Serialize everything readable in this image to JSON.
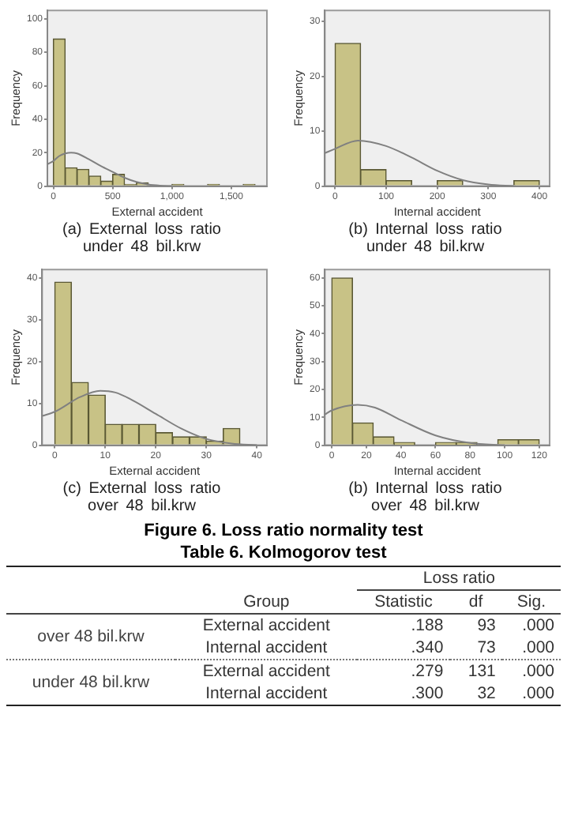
{
  "chart_data": [
    {
      "type": "histogram",
      "title": "(a) External loss ratio under 48 bil.krw",
      "xlabel": "External accident",
      "ylabel": "Frequency",
      "color": "#c8c286",
      "marker": "none",
      "bins": [
        0,
        100,
        200,
        300,
        400,
        500,
        600,
        700,
        800,
        900,
        1000,
        1100,
        1200,
        1300,
        1400,
        1500,
        1600,
        1700
      ],
      "values": [
        88,
        11,
        10,
        6,
        3,
        7,
        1,
        2,
        0,
        0,
        1,
        0,
        0,
        1,
        0,
        0,
        1
      ],
      "xlim": [
        -50,
        1800
      ],
      "xticks": [
        0,
        500,
        {
          "value": 1000,
          "label": "1,000"
        },
        {
          "value": 1500,
          "label": "1,500"
        }
      ],
      "ylim": [
        0,
        105
      ],
      "yticks": [
        0,
        20,
        40,
        60,
        80,
        100
      ],
      "series": [
        {
          "type": "line",
          "color": "#808080",
          "x": [
            -50,
            0,
            50,
            100,
            150,
            200,
            300,
            400,
            500,
            600,
            700,
            800,
            900,
            1000
          ],
          "values": [
            13,
            15,
            18,
            19.5,
            20,
            19.5,
            16,
            12,
            8.5,
            5,
            2.5,
            1,
            0.3,
            0
          ]
        }
      ]
    },
    {
      "type": "histogram",
      "title": "(b) Internal loss ratio under 48 bil.krw",
      "xlabel": "Internal accident",
      "ylabel": "Frequency",
      "color": "#c8c286",
      "marker": "none",
      "bins": [
        0,
        50,
        100,
        150,
        200,
        250,
        300,
        350,
        400
      ],
      "values": [
        26,
        3,
        1,
        0,
        1,
        0,
        0,
        1
      ],
      "xlim": [
        -20,
        420
      ],
      "xticks": [
        0,
        100,
        200,
        300,
        400
      ],
      "ylim": [
        0,
        32
      ],
      "yticks": [
        0,
        10,
        20,
        30
      ],
      "series": [
        {
          "type": "line",
          "color": "#808080",
          "x": [
            -20,
            0,
            45,
            100,
            150,
            200,
            250,
            300,
            350
          ],
          "values": [
            6,
            6.8,
            8.3,
            7.3,
            5.2,
            2.8,
            1.1,
            0.3,
            0
          ]
        }
      ]
    },
    {
      "type": "histogram",
      "title": "(c) External loss ratio over 48 bil.krw",
      "xlabel": "External accident",
      "ylabel": "Frequency",
      "color": "#c8c286",
      "marker": "none",
      "bins": [
        0,
        3.3,
        6.7,
        10,
        13.3,
        16.7,
        20,
        23.3,
        26.7,
        30,
        33.3,
        36.7
      ],
      "values": [
        39,
        15,
        12,
        5,
        5,
        5,
        3,
        2,
        2,
        1,
        4
      ],
      "xlim": [
        -2.5,
        42
      ],
      "xticks": [
        0,
        10,
        20,
        30,
        40
      ],
      "ylim": [
        0,
        42
      ],
      "yticks": [
        0,
        10,
        20,
        30,
        40
      ],
      "series": [
        {
          "type": "line",
          "color": "#808080",
          "x": [
            -2.5,
            0,
            5,
            9,
            12,
            15,
            20,
            25,
            30,
            35,
            40
          ],
          "values": [
            7,
            8,
            11.5,
            13,
            12.6,
            11,
            7.5,
            4,
            1.5,
            0.4,
            0
          ]
        }
      ]
    },
    {
      "type": "histogram",
      "title": "(b) Internal loss ratio over 48 bil.krw",
      "xlabel": "Internal accident",
      "ylabel": "Frequency",
      "color": "#c8c286",
      "marker": "none",
      "bins": [
        0,
        12,
        24,
        36,
        48,
        60,
        72,
        84,
        96,
        108,
        120
      ],
      "values": [
        60,
        8,
        3,
        1,
        0,
        1,
        1,
        0,
        2,
        2
      ],
      "xlim": [
        -4,
        126
      ],
      "xticks": [
        0,
        20,
        40,
        60,
        80,
        100,
        120
      ],
      "ylim": [
        0,
        63
      ],
      "yticks": [
        0,
        10,
        20,
        30,
        40,
        50,
        60
      ],
      "series": [
        {
          "type": "line",
          "color": "#808080",
          "x": [
            -4,
            0,
            15,
            25,
            40,
            60,
            80,
            100
          ],
          "values": [
            11,
            12.5,
            14.5,
            13.5,
            9,
            3.5,
            0.8,
            0
          ]
        }
      ],
      "annotations": [
        "Figure 6. Loss ratio normality test"
      ]
    },
    {
      "type": "other",
      "title": "Table 6. Kolmogorov test",
      "annotations": [
        "Loss ratio",
        "Group",
        "Statistic",
        "df",
        "Sig.",
        "over 48 bil.krw",
        "External accident",
        ".188",
        "93",
        ".000",
        "Internal accident",
        ".340",
        "73",
        ".000",
        "under 48 bil.krw",
        "External accident",
        ".279",
        "131",
        ".000",
        "Internal accident",
        ".300",
        "32",
        ".000"
      ]
    }
  ]
}
